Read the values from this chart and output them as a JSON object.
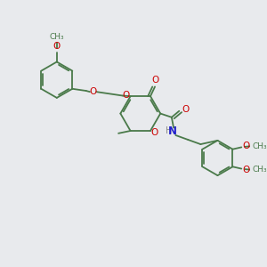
{
  "bg_color": "#e8eaed",
  "bond_color": "#4a7a4a",
  "o_color": "#cc0000",
  "n_color": "#2222cc",
  "h_color": "#888888",
  "bond_width": 1.3,
  "figsize": [
    3.0,
    3.0
  ],
  "dpi": 100,
  "xlim": [
    0,
    10
  ],
  "ylim": [
    0,
    10
  ]
}
